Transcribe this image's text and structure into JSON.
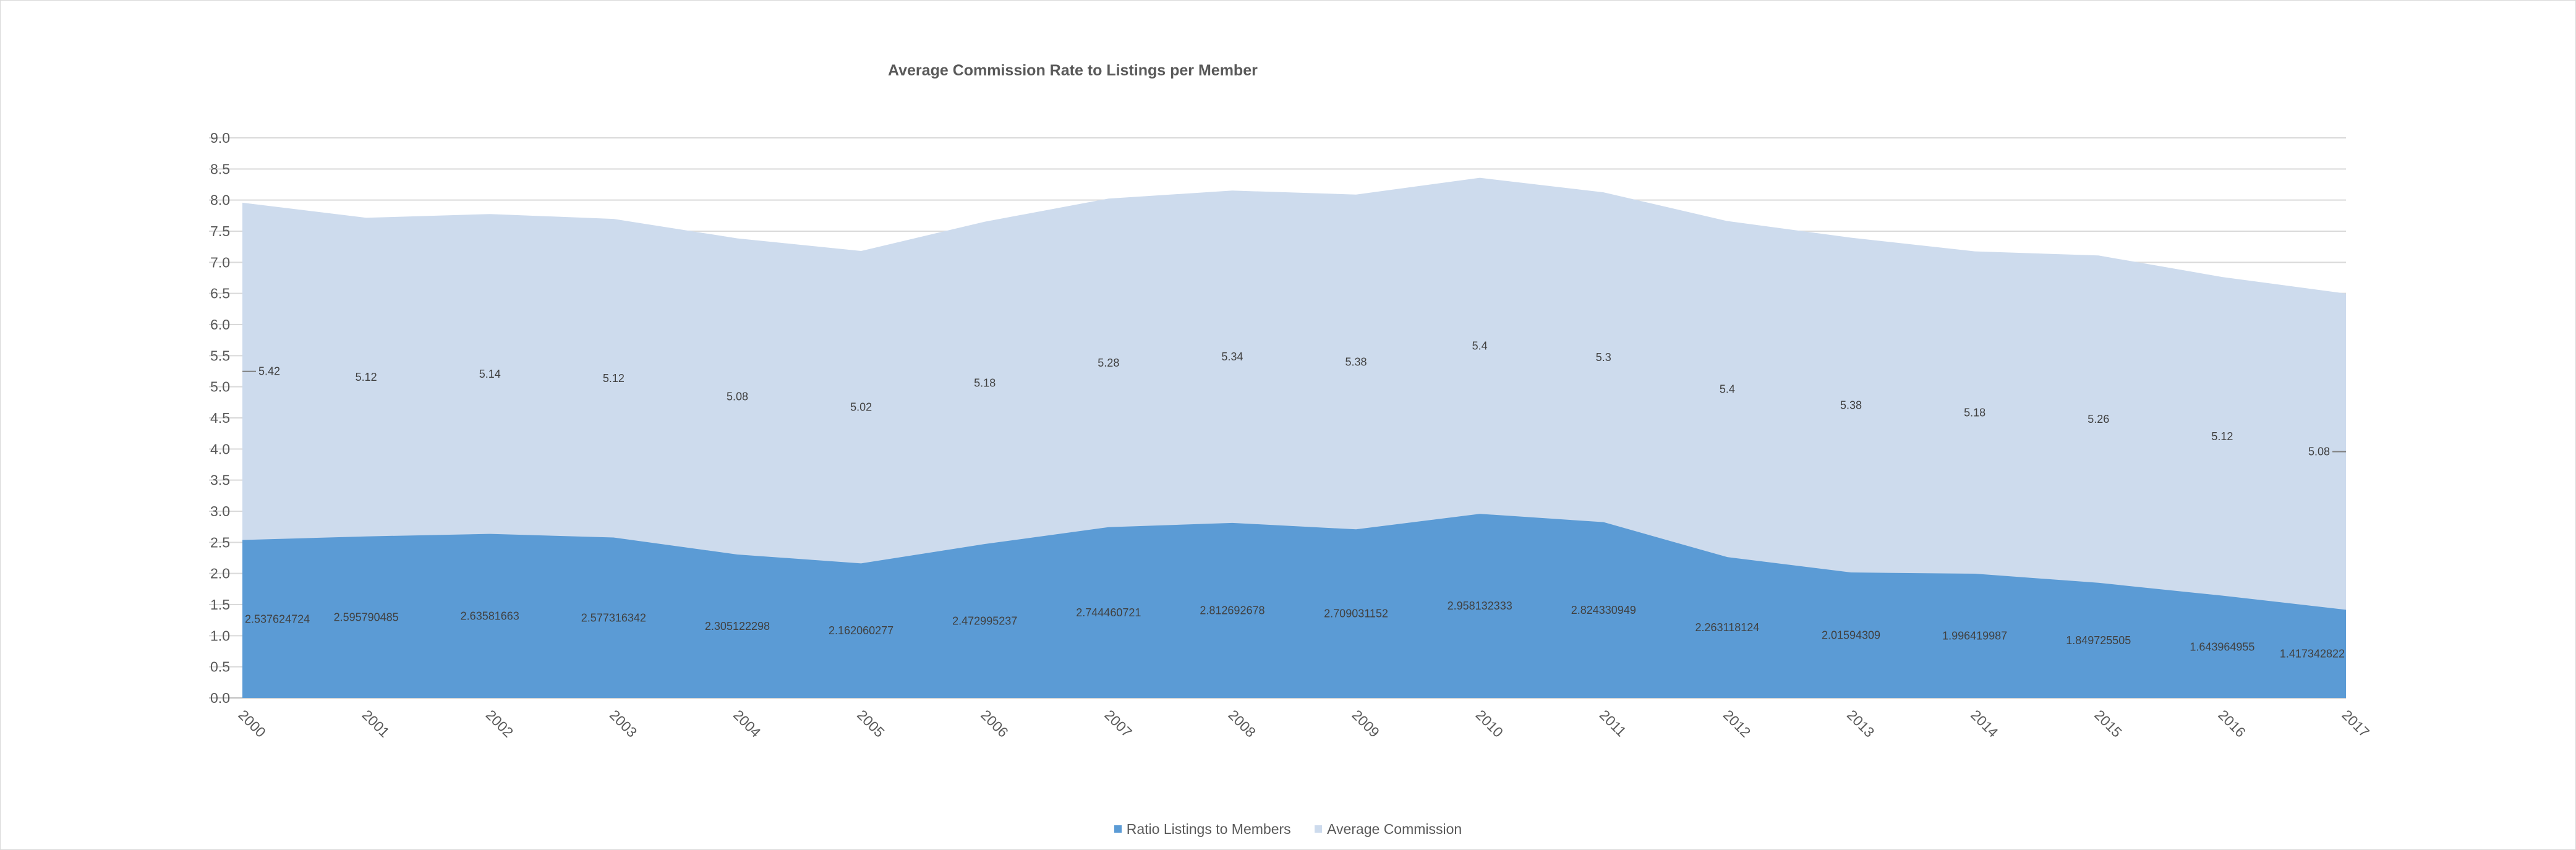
{
  "chart_data": {
    "type": "area",
    "stacked": true,
    "title": "Average Commission Rate to Listings per Member",
    "categories": [
      "2000",
      "2001",
      "2002",
      "2003",
      "2004",
      "2005",
      "2006",
      "2007",
      "2008",
      "2009",
      "2010",
      "2011",
      "2012",
      "2013",
      "2014",
      "2015",
      "2016",
      "2017"
    ],
    "series": [
      {
        "name": "Ratio Listings to Members",
        "color": "#5b9bd5",
        "values": [
          2.537624724,
          2.595790485,
          2.63581663,
          2.577316342,
          2.305122298,
          2.162060277,
          2.472995237,
          2.744460721,
          2.812692678,
          2.709031152,
          2.958132333,
          2.824330949,
          2.263118124,
          2.01594309,
          1.996419987,
          1.849725505,
          1.643964955,
          1.417342822
        ],
        "labels": [
          "2.537624724",
          "2.595790485",
          "2.63581663",
          "2.577316342",
          "2.305122298",
          "2.162060277",
          "2.472995237",
          "2.744460721",
          "2.812692678",
          "2.709031152",
          "2.958132333",
          "2.824330949",
          "2.263118124",
          "2.01594309",
          "1.996419987",
          "1.849725505",
          "1.643964955",
          "1.417342822"
        ]
      },
      {
        "name": "Average Commission",
        "color": "#cddbed",
        "values": [
          5.42,
          5.12,
          5.14,
          5.12,
          5.08,
          5.02,
          5.18,
          5.28,
          5.34,
          5.38,
          5.4,
          5.3,
          5.4,
          5.38,
          5.18,
          5.26,
          5.12,
          5.08
        ],
        "labels": [
          "5.42",
          "5.12",
          "5.14",
          "5.12",
          "5.08",
          "5.02",
          "5.18",
          "5.28",
          "5.34",
          "5.38",
          "5.4",
          "5.3",
          "5.4",
          "5.38",
          "5.18",
          "5.26",
          "5.12",
          "5.08"
        ]
      }
    ],
    "y_ticks": [
      "0.0",
      "0.5",
      "1.0",
      "1.5",
      "2.0",
      "2.5",
      "3.0",
      "3.5",
      "4.0",
      "4.5",
      "5.0",
      "5.5",
      "6.0",
      "6.5",
      "7.0",
      "7.5",
      "8.0",
      "8.5",
      "9.0"
    ],
    "ylim": [
      0,
      9
    ],
    "grid": true,
    "legend_position": "bottom"
  }
}
